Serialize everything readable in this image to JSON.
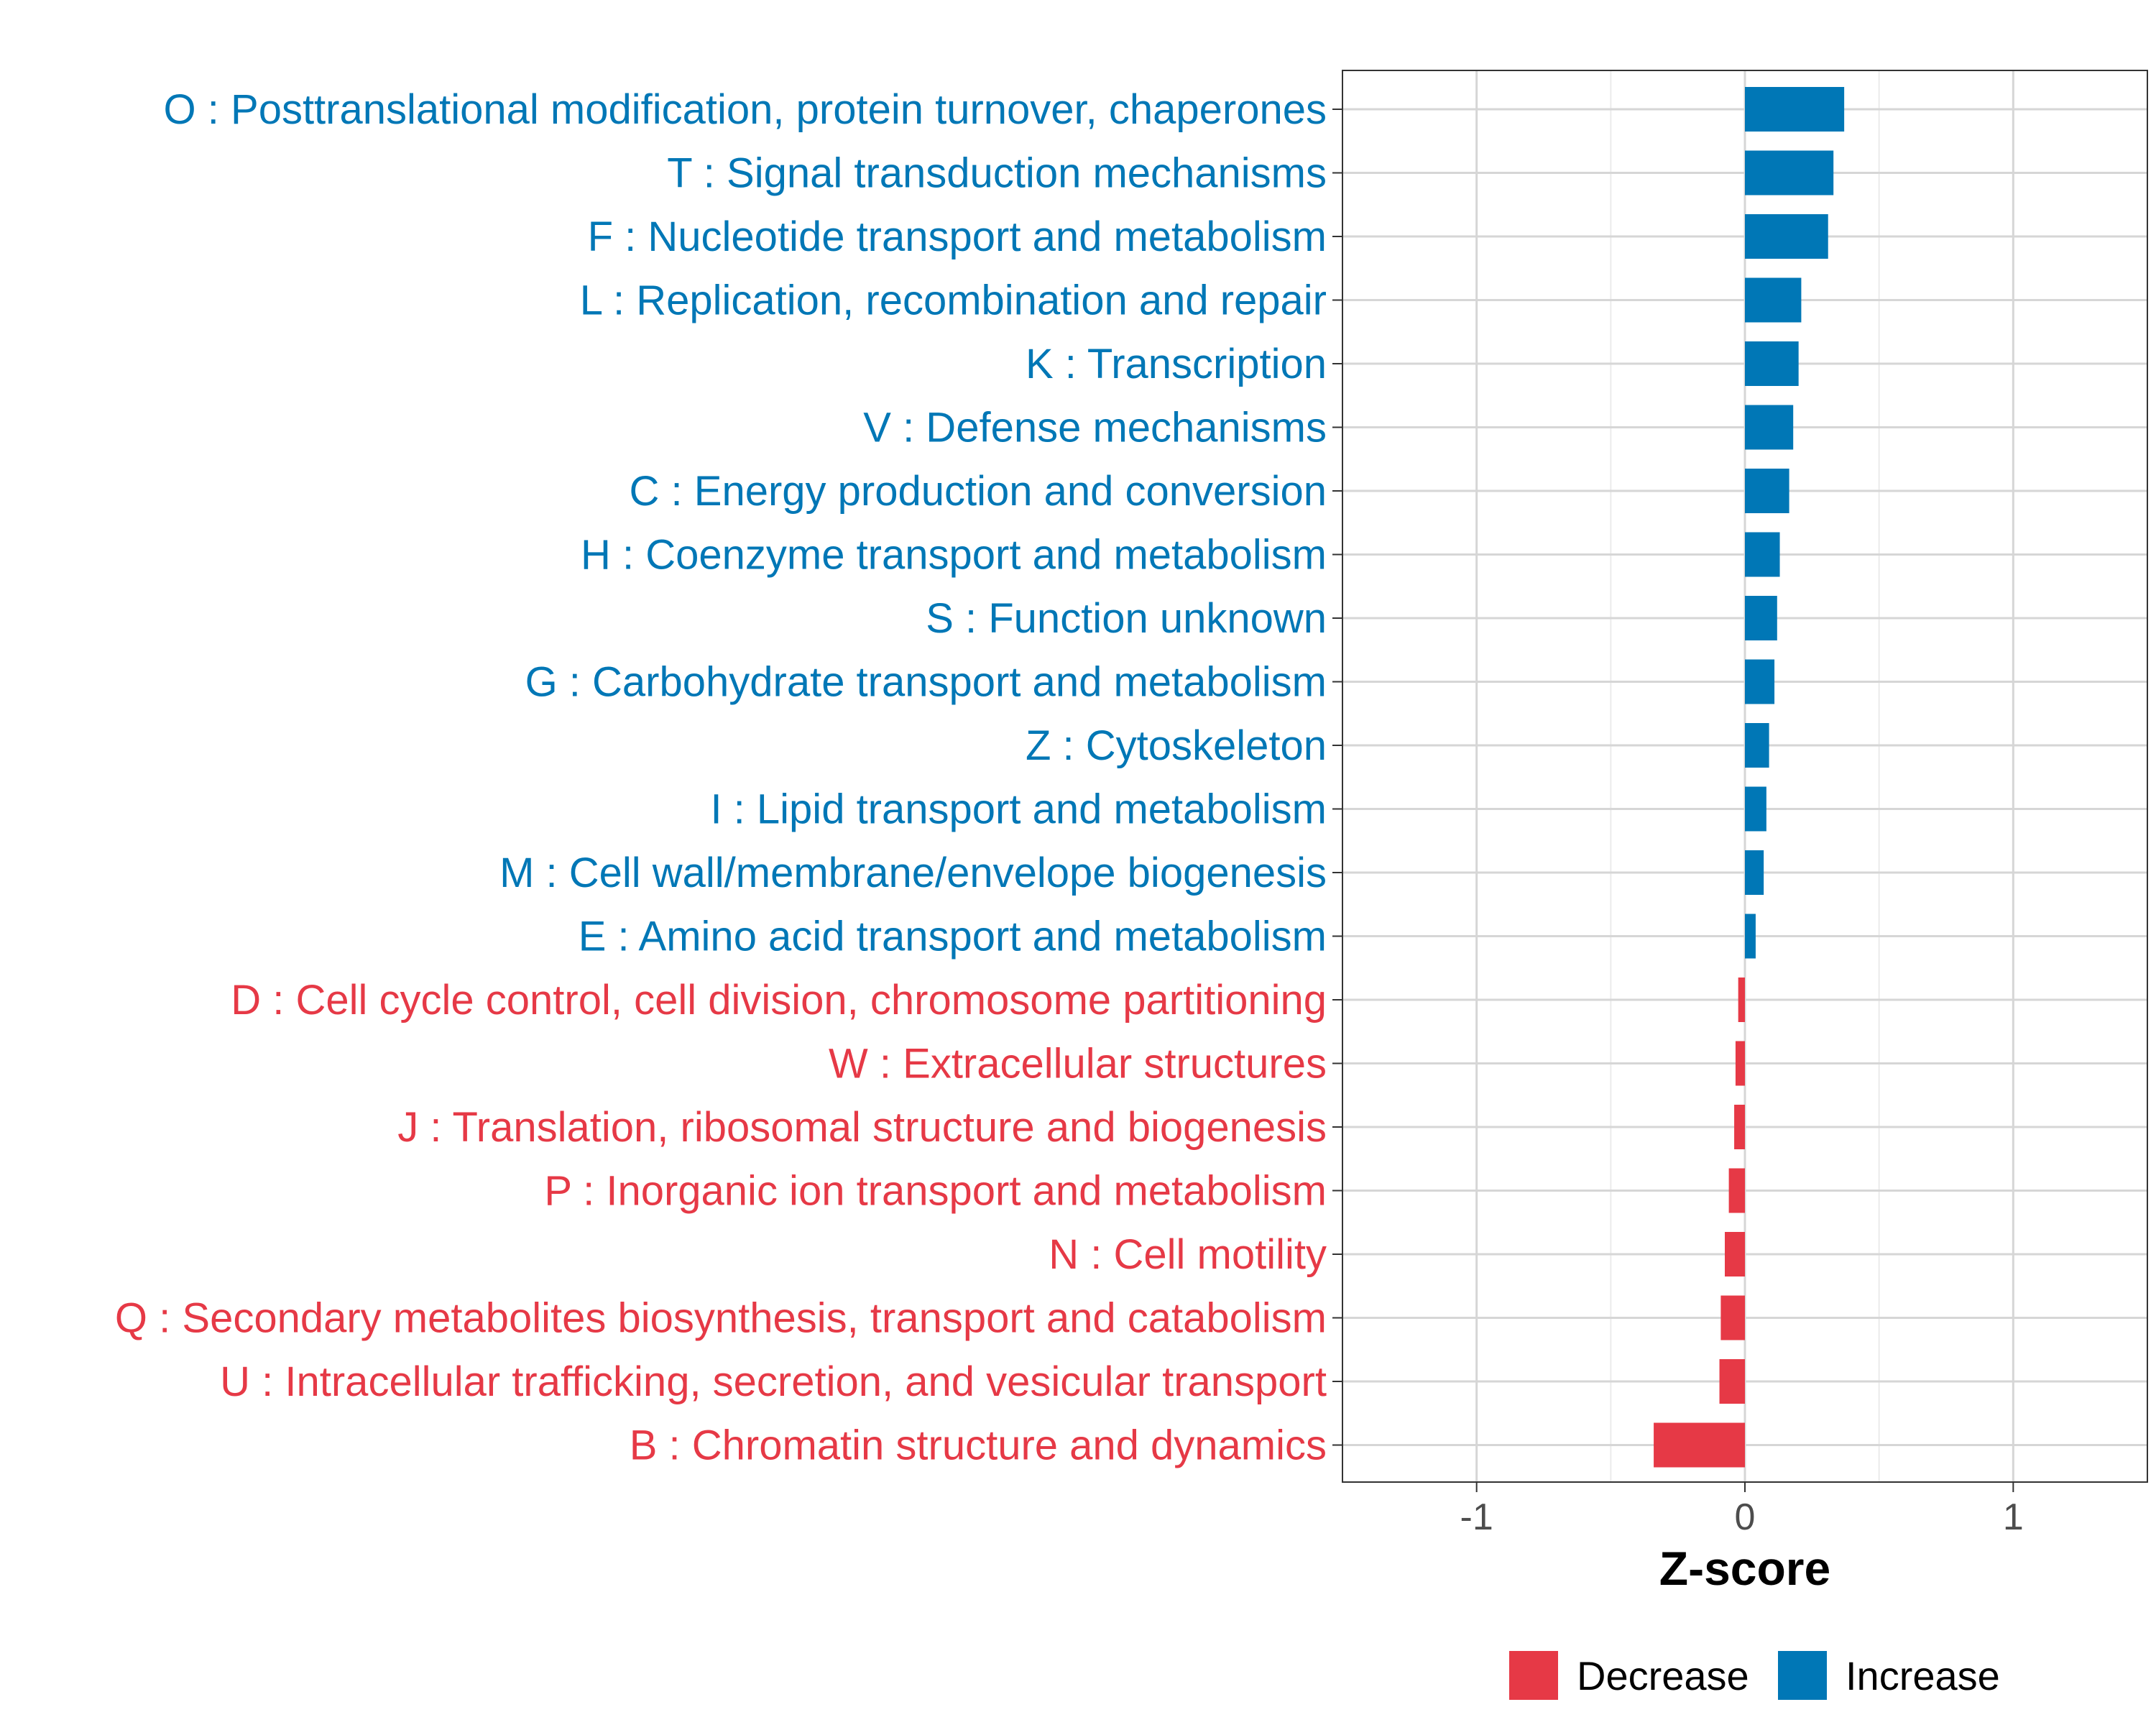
{
  "chart_data": {
    "type": "bar",
    "orientation": "horizontal",
    "title": "",
    "xlabel": "Z-score",
    "ylabel": "",
    "xlim": [
      -1.5,
      1.5
    ],
    "xticks": [
      -1,
      0,
      1
    ],
    "xtick_labels": [
      "-1",
      "0",
      "1"
    ],
    "grid": true,
    "legend_position": "bottom-right",
    "legend": [
      {
        "key": "Decrease",
        "label": "Decrease",
        "color": "#E63946"
      },
      {
        "key": "Increase",
        "label": "Increase",
        "color": "#0077B6"
      }
    ],
    "categories": [
      "O : Posttranslational modification, protein turnover, chaperones",
      "T : Signal transduction mechanisms",
      "F : Nucleotide transport and metabolism",
      "L : Replication, recombination and repair",
      "K : Transcription",
      "V : Defense mechanisms",
      "C : Energy production and conversion",
      "H : Coenzyme transport and metabolism",
      "S : Function unknown",
      "G : Carbohydrate transport and metabolism",
      "Z : Cytoskeleton",
      "I : Lipid transport and metabolism",
      "M : Cell wall/membrane/envelope biogenesis",
      "E : Amino acid transport and metabolism",
      "D : Cell cycle control, cell division, chromosome partitioning",
      "W : Extracellular structures",
      "J : Translation, ribosomal structure and biogenesis",
      "P : Inorganic ion transport and metabolism",
      "N : Cell motility",
      "Q : Secondary metabolites biosynthesis, transport and catabolism",
      "U : Intracellular trafficking, secretion, and vesicular transport",
      "B : Chromatin structure and dynamics"
    ],
    "values": [
      0.37,
      0.33,
      0.31,
      0.21,
      0.2,
      0.18,
      0.165,
      0.13,
      0.12,
      0.11,
      0.09,
      0.08,
      0.07,
      0.04,
      -0.025,
      -0.035,
      -0.04,
      -0.06,
      -0.075,
      -0.09,
      -0.095,
      -0.34
    ],
    "groups": [
      "Increase",
      "Increase",
      "Increase",
      "Increase",
      "Increase",
      "Increase",
      "Increase",
      "Increase",
      "Increase",
      "Increase",
      "Increase",
      "Increase",
      "Increase",
      "Increase",
      "Decrease",
      "Decrease",
      "Decrease",
      "Decrease",
      "Decrease",
      "Decrease",
      "Decrease",
      "Decrease"
    ]
  }
}
